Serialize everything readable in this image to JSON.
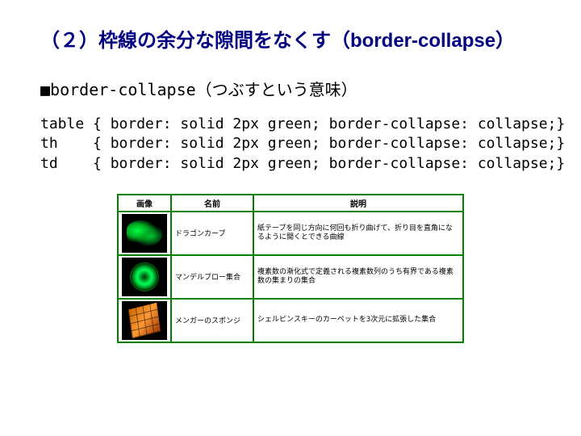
{
  "title": "（２）枠線の余分な隙間をなくす（border-collapse）",
  "subtitle": "■border-collapse（つぶすという意味）",
  "code": "table { border: solid 2px green; border-collapse: collapse;}\nth    { border: solid 2px green; border-collapse: collapse;}\ntd    { border: solid 2px green; border-collapse: collapse;}",
  "table": {
    "border_color": "#008000",
    "border_width": "2px",
    "headers": [
      "画像",
      "名前",
      "説明"
    ],
    "rows": [
      {
        "thumb_class": "fractal1",
        "name": "ドラゴンカーブ",
        "desc": "紙テープを同じ方向に何回も折り曲げて、折り目を直角になるように開くとできる曲線"
      },
      {
        "thumb_class": "fractal2",
        "name": "マンデルブロー集合",
        "desc": "複素数の漸化式で定義される複素数列のうち有界である複素数の集まりの集合"
      },
      {
        "thumb_class": "fractal3",
        "name": "メンガーのスポンジ",
        "desc": "シェルピンスキーのカーペットを3次元に拡張した集合"
      }
    ]
  }
}
